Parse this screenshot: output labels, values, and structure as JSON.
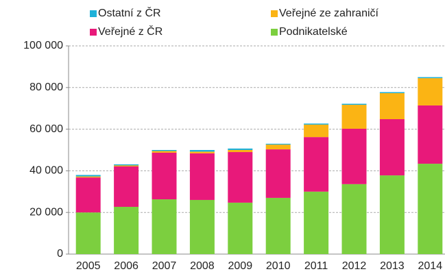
{
  "chart_data": {
    "type": "stacked_bar",
    "categories": [
      "2005",
      "2006",
      "2007",
      "2008",
      "2009",
      "2010",
      "2011",
      "2012",
      "2013",
      "2014"
    ],
    "series": [
      {
        "name": "Podnikatelské",
        "color": "#7ccf3f",
        "values": [
          20000,
          22700,
          26300,
          26000,
          24700,
          27000,
          30000,
          33600,
          37800,
          43400
        ]
      },
      {
        "name": "Veřejné z ČR",
        "color": "#e8197a",
        "values": [
          16800,
          19400,
          22400,
          22400,
          24300,
          23300,
          26200,
          26600,
          27000,
          28000
        ]
      },
      {
        "name": "Veřejné ze zahraničí",
        "color": "#fbb414",
        "values": [
          500,
          500,
          800,
          800,
          1000,
          2300,
          6000,
          11500,
          12500,
          13100
        ]
      },
      {
        "name": "Ostatní z ČR",
        "color": "#1eb1d9",
        "values": [
          700,
          500,
          500,
          800,
          700,
          400,
          500,
          500,
          500,
          500
        ]
      }
    ],
    "ylim": [
      0,
      100000
    ],
    "yticks": [
      0,
      {
        "value": 20000,
        "label": "20 000"
      },
      {
        "value": 40000,
        "label": "40 000"
      },
      {
        "value": 60000,
        "label": "60 000"
      },
      {
        "value": 80000,
        "label": "80 000"
      },
      {
        "value": 100000,
        "label": "100 000"
      }
    ],
    "grid": true
  }
}
